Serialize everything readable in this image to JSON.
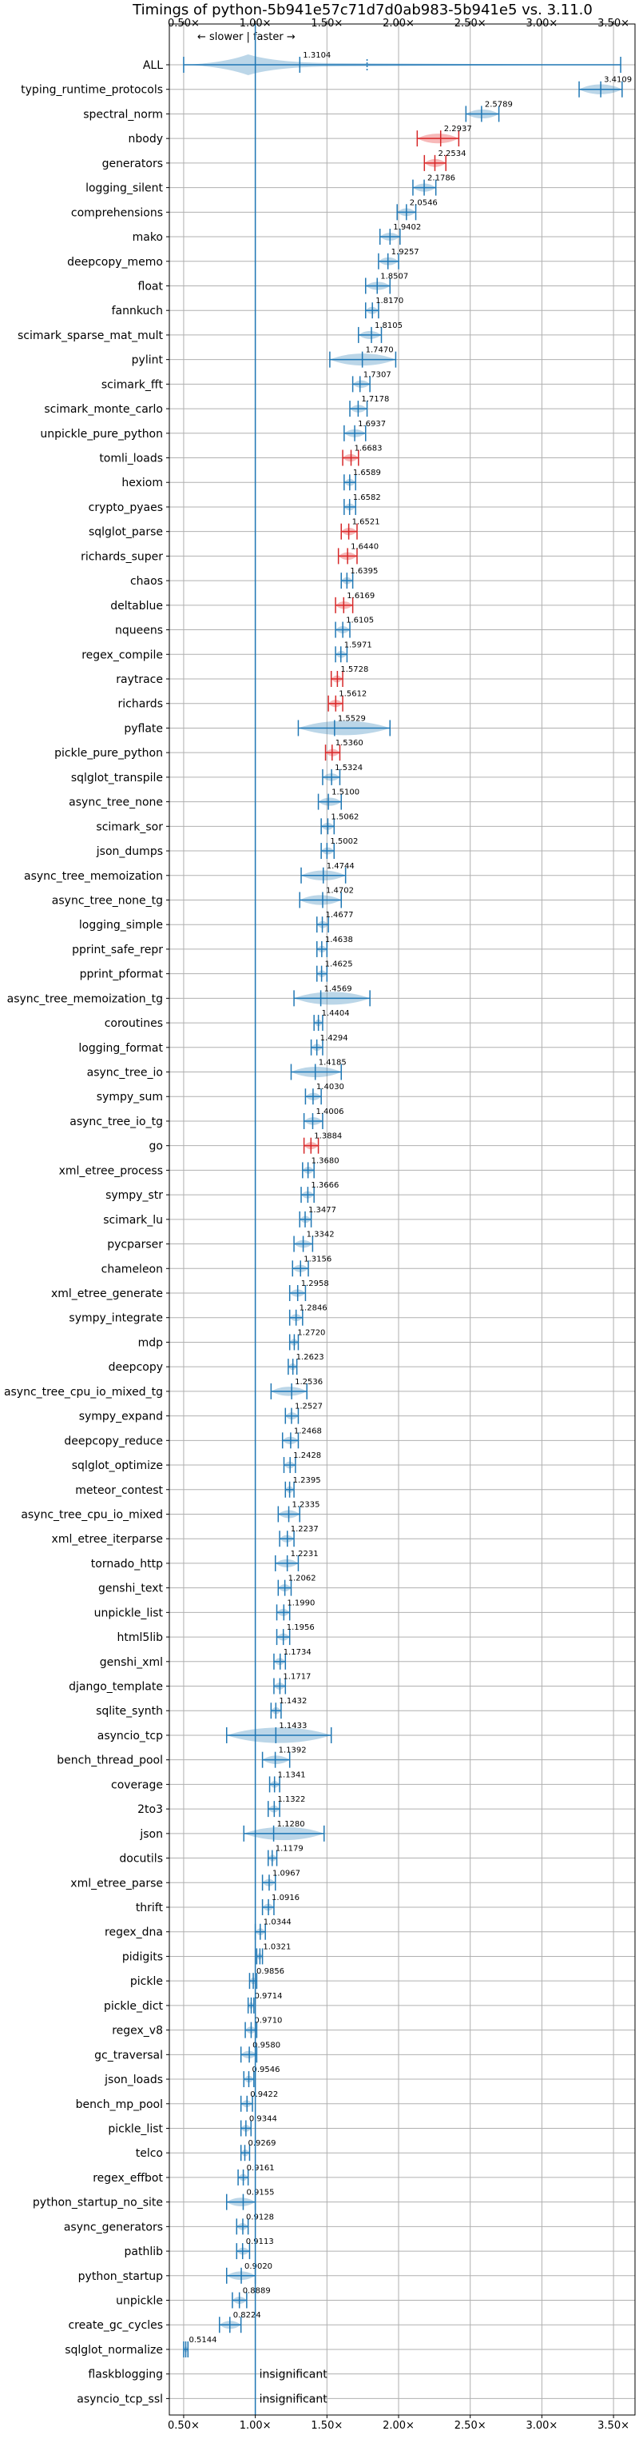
{
  "chart_data": {
    "type": "violin",
    "title": "Timings of python-5b941e57c71d7d0ab983-5b941e5 vs. 3.11.0",
    "direction_note": "← slower | faster →",
    "xlim": [
      0.4,
      3.65
    ],
    "x_ticks": [
      0.5,
      1.0,
      1.5,
      2.0,
      2.5,
      3.0,
      3.5
    ],
    "x_tick_labels": [
      "0.50×",
      "1.00×",
      "1.50×",
      "2.00×",
      "2.50×",
      "3.00×",
      "3.50×"
    ],
    "reference_line": 1.0,
    "grid": true,
    "benchmarks": [
      {
        "name": "ALL",
        "value": 1.3104,
        "label": "1.3104",
        "min": 0.5,
        "max": 3.55,
        "spread": 0.12
      },
      {
        "name": "typing_runtime_protocols",
        "value": 3.4109,
        "label": "3.4109",
        "min": 3.26,
        "max": 3.56,
        "spread": 0.06
      },
      {
        "name": "spectral_norm",
        "value": 2.5789,
        "label": "2.5789",
        "min": 2.47,
        "max": 2.7,
        "spread": 0.06
      },
      {
        "name": "nbody",
        "value": 2.2937,
        "label": "2.2937",
        "min": 2.13,
        "max": 2.42,
        "spread": 0.05,
        "color": "red"
      },
      {
        "name": "generators",
        "value": 2.2534,
        "label": "2.2534",
        "min": 2.18,
        "max": 2.33,
        "spread": 0.05,
        "color": "red"
      },
      {
        "name": "logging_silent",
        "value": 2.1786,
        "label": "2.1786",
        "min": 2.1,
        "max": 2.26,
        "spread": 0.05
      },
      {
        "name": "comprehensions",
        "value": 2.0546,
        "label": "2.0546",
        "min": 1.99,
        "max": 2.12,
        "spread": 0.05
      },
      {
        "name": "mako",
        "value": 1.9402,
        "label": "1.9402",
        "min": 1.87,
        "max": 2.01,
        "spread": 0.05
      },
      {
        "name": "deepcopy_memo",
        "value": 1.9257,
        "label": "1.9257",
        "min": 1.86,
        "max": 2.0,
        "spread": 0.05
      },
      {
        "name": "float",
        "value": 1.8507,
        "label": "1.8507",
        "min": 1.77,
        "max": 1.94,
        "spread": 0.05
      },
      {
        "name": "fannkuch",
        "value": 1.817,
        "label": "1.8170",
        "min": 1.77,
        "max": 1.86,
        "spread": 0.05
      },
      {
        "name": "scimark_sparse_mat_mult",
        "value": 1.8105,
        "label": "1.8105",
        "min": 1.72,
        "max": 1.88,
        "spread": 0.05
      },
      {
        "name": "pylint",
        "value": 1.747,
        "label": "1.7470",
        "min": 1.52,
        "max": 1.98,
        "spread": 0.05
      },
      {
        "name": "scimark_fft",
        "value": 1.7307,
        "label": "1.7307",
        "min": 1.68,
        "max": 1.8,
        "spread": 0.05
      },
      {
        "name": "scimark_monte_carlo",
        "value": 1.7178,
        "label": "1.7178",
        "min": 1.66,
        "max": 1.78,
        "spread": 0.05
      },
      {
        "name": "unpickle_pure_python",
        "value": 1.6937,
        "label": "1.6937",
        "min": 1.62,
        "max": 1.77,
        "spread": 0.05
      },
      {
        "name": "tomli_loads",
        "value": 1.6683,
        "label": "1.6683",
        "min": 1.61,
        "max": 1.72,
        "spread": 0.05,
        "color": "red"
      },
      {
        "name": "hexiom",
        "value": 1.6589,
        "label": "1.6589",
        "min": 1.62,
        "max": 1.7,
        "spread": 0.05
      },
      {
        "name": "crypto_pyaes",
        "value": 1.6582,
        "label": "1.6582",
        "min": 1.62,
        "max": 1.7,
        "spread": 0.05
      },
      {
        "name": "sqlglot_parse",
        "value": 1.6521,
        "label": "1.6521",
        "min": 1.6,
        "max": 1.71,
        "spread": 0.05,
        "color": "red"
      },
      {
        "name": "richards_super",
        "value": 1.644,
        "label": "1.6440",
        "min": 1.58,
        "max": 1.71,
        "spread": 0.05,
        "color": "red"
      },
      {
        "name": "chaos",
        "value": 1.6395,
        "label": "1.6395",
        "min": 1.6,
        "max": 1.68,
        "spread": 0.05
      },
      {
        "name": "deltablue",
        "value": 1.6169,
        "label": "1.6169",
        "min": 1.56,
        "max": 1.68,
        "spread": 0.05,
        "color": "red"
      },
      {
        "name": "nqueens",
        "value": 1.6105,
        "label": "1.6105",
        "min": 1.56,
        "max": 1.66,
        "spread": 0.05
      },
      {
        "name": "regex_compile",
        "value": 1.5971,
        "label": "1.5971",
        "min": 1.56,
        "max": 1.64,
        "spread": 0.05
      },
      {
        "name": "raytrace",
        "value": 1.5728,
        "label": "1.5728",
        "min": 1.53,
        "max": 1.61,
        "spread": 0.05,
        "color": "red"
      },
      {
        "name": "richards",
        "value": 1.5612,
        "label": "1.5612",
        "min": 1.51,
        "max": 1.61,
        "spread": 0.05,
        "color": "red"
      },
      {
        "name": "pyflate",
        "value": 1.5529,
        "label": "1.5529",
        "min": 1.3,
        "max": 1.94,
        "spread": 0.05
      },
      {
        "name": "pickle_pure_python",
        "value": 1.536,
        "label": "1.5360",
        "min": 1.49,
        "max": 1.59,
        "spread": 0.05,
        "color": "red"
      },
      {
        "name": "sqlglot_transpile",
        "value": 1.5324,
        "label": "1.5324",
        "min": 1.47,
        "max": 1.59,
        "spread": 0.05
      },
      {
        "name": "async_tree_none",
        "value": 1.51,
        "label": "1.5100",
        "min": 1.44,
        "max": 1.6,
        "spread": 0.05
      },
      {
        "name": "scimark_sor",
        "value": 1.5062,
        "label": "1.5062",
        "min": 1.46,
        "max": 1.55,
        "spread": 0.05
      },
      {
        "name": "json_dumps",
        "value": 1.5002,
        "label": "1.5002",
        "min": 1.46,
        "max": 1.55,
        "spread": 0.05
      },
      {
        "name": "async_tree_memoization",
        "value": 1.4744,
        "label": "1.4744",
        "min": 1.32,
        "max": 1.63,
        "spread": 0.05
      },
      {
        "name": "async_tree_none_tg",
        "value": 1.4702,
        "label": "1.4702",
        "min": 1.31,
        "max": 1.6,
        "spread": 0.05
      },
      {
        "name": "logging_simple",
        "value": 1.4677,
        "label": "1.4677",
        "min": 1.43,
        "max": 1.51,
        "spread": 0.05
      },
      {
        "name": "pprint_safe_repr",
        "value": 1.4638,
        "label": "1.4638",
        "min": 1.43,
        "max": 1.5,
        "spread": 0.05
      },
      {
        "name": "pprint_pformat",
        "value": 1.4625,
        "label": "1.4625",
        "min": 1.43,
        "max": 1.5,
        "spread": 0.05
      },
      {
        "name": "async_tree_memoization_tg",
        "value": 1.4569,
        "label": "1.4569",
        "min": 1.27,
        "max": 1.8,
        "spread": 0.05
      },
      {
        "name": "coroutines",
        "value": 1.4404,
        "label": "1.4404",
        "min": 1.41,
        "max": 1.47,
        "spread": 0.05
      },
      {
        "name": "logging_format",
        "value": 1.4294,
        "label": "1.4294",
        "min": 1.39,
        "max": 1.47,
        "spread": 0.05
      },
      {
        "name": "async_tree_io",
        "value": 1.4185,
        "label": "1.4185",
        "min": 1.25,
        "max": 1.6,
        "spread": 0.05
      },
      {
        "name": "sympy_sum",
        "value": 1.403,
        "label": "1.4030",
        "min": 1.35,
        "max": 1.46,
        "spread": 0.05
      },
      {
        "name": "async_tree_io_tg",
        "value": 1.4006,
        "label": "1.4006",
        "min": 1.34,
        "max": 1.47,
        "spread": 0.05
      },
      {
        "name": "go",
        "value": 1.3884,
        "label": "1.3884",
        "min": 1.34,
        "max": 1.44,
        "spread": 0.05,
        "color": "red"
      },
      {
        "name": "xml_etree_process",
        "value": 1.368,
        "label": "1.3680",
        "min": 1.33,
        "max": 1.41,
        "spread": 0.05
      },
      {
        "name": "sympy_str",
        "value": 1.3666,
        "label": "1.3666",
        "min": 1.32,
        "max": 1.41,
        "spread": 0.05
      },
      {
        "name": "scimark_lu",
        "value": 1.3477,
        "label": "1.3477",
        "min": 1.31,
        "max": 1.39,
        "spread": 0.05
      },
      {
        "name": "pycparser",
        "value": 1.3342,
        "label": "1.3342",
        "min": 1.27,
        "max": 1.4,
        "spread": 0.05
      },
      {
        "name": "chameleon",
        "value": 1.3156,
        "label": "1.3156",
        "min": 1.26,
        "max": 1.37,
        "spread": 0.05
      },
      {
        "name": "xml_etree_generate",
        "value": 1.2958,
        "label": "1.2958",
        "min": 1.24,
        "max": 1.35,
        "spread": 0.05
      },
      {
        "name": "sympy_integrate",
        "value": 1.2846,
        "label": "1.2846",
        "min": 1.24,
        "max": 1.33,
        "spread": 0.05
      },
      {
        "name": "mdp",
        "value": 1.272,
        "label": "1.2720",
        "min": 1.24,
        "max": 1.3,
        "spread": 0.05
      },
      {
        "name": "deepcopy",
        "value": 1.2623,
        "label": "1.2623",
        "min": 1.23,
        "max": 1.29,
        "spread": 0.05
      },
      {
        "name": "async_tree_cpu_io_mixed_tg",
        "value": 1.2536,
        "label": "1.2536",
        "min": 1.11,
        "max": 1.36,
        "spread": 0.05
      },
      {
        "name": "sympy_expand",
        "value": 1.2527,
        "label": "1.2527",
        "min": 1.21,
        "max": 1.3,
        "spread": 0.05
      },
      {
        "name": "deepcopy_reduce",
        "value": 1.2468,
        "label": "1.2468",
        "min": 1.19,
        "max": 1.3,
        "spread": 0.05
      },
      {
        "name": "sqlglot_optimize",
        "value": 1.2428,
        "label": "1.2428",
        "min": 1.2,
        "max": 1.28,
        "spread": 0.05
      },
      {
        "name": "meteor_contest",
        "value": 1.2395,
        "label": "1.2395",
        "min": 1.21,
        "max": 1.27,
        "spread": 0.05
      },
      {
        "name": "async_tree_cpu_io_mixed",
        "value": 1.2335,
        "label": "1.2335",
        "min": 1.16,
        "max": 1.31,
        "spread": 0.05
      },
      {
        "name": "xml_etree_iterparse",
        "value": 1.2237,
        "label": "1.2237",
        "min": 1.17,
        "max": 1.27,
        "spread": 0.05
      },
      {
        "name": "tornado_http",
        "value": 1.2231,
        "label": "1.2231",
        "min": 1.14,
        "max": 1.3,
        "spread": 0.05
      },
      {
        "name": "genshi_text",
        "value": 1.2062,
        "label": "1.2062",
        "min": 1.16,
        "max": 1.25,
        "spread": 0.05
      },
      {
        "name": "unpickle_list",
        "value": 1.199,
        "label": "1.1990",
        "min": 1.15,
        "max": 1.24,
        "spread": 0.05
      },
      {
        "name": "html5lib",
        "value": 1.1956,
        "label": "1.1956",
        "min": 1.15,
        "max": 1.24,
        "spread": 0.05
      },
      {
        "name": "genshi_xml",
        "value": 1.1734,
        "label": "1.1734",
        "min": 1.13,
        "max": 1.21,
        "spread": 0.05
      },
      {
        "name": "django_template",
        "value": 1.1717,
        "label": "1.1717",
        "min": 1.13,
        "max": 1.21,
        "spread": 0.05
      },
      {
        "name": "sqlite_synth",
        "value": 1.1432,
        "label": "1.1432",
        "min": 1.11,
        "max": 1.18,
        "spread": 0.05
      },
      {
        "name": "asyncio_tcp",
        "value": 1.1433,
        "label": "1.1433",
        "min": 0.8,
        "max": 1.53,
        "spread": 0.05
      },
      {
        "name": "bench_thread_pool",
        "value": 1.1392,
        "label": "1.1392",
        "min": 1.05,
        "max": 1.24,
        "spread": 0.05
      },
      {
        "name": "coverage",
        "value": 1.1341,
        "label": "1.1341",
        "min": 1.1,
        "max": 1.17,
        "spread": 0.05
      },
      {
        "name": "2to3",
        "value": 1.1322,
        "label": "1.1322",
        "min": 1.09,
        "max": 1.17,
        "spread": 0.05
      },
      {
        "name": "json",
        "value": 1.128,
        "label": "1.1280",
        "min": 0.92,
        "max": 1.48,
        "spread": 0.05
      },
      {
        "name": "docutils",
        "value": 1.1179,
        "label": "1.1179",
        "min": 1.09,
        "max": 1.15,
        "spread": 0.05
      },
      {
        "name": "xml_etree_parse",
        "value": 1.0967,
        "label": "1.0967",
        "min": 1.05,
        "max": 1.14,
        "spread": 0.05
      },
      {
        "name": "thrift",
        "value": 1.0916,
        "label": "1.0916",
        "min": 1.05,
        "max": 1.13,
        "spread": 0.05
      },
      {
        "name": "regex_dna",
        "value": 1.0344,
        "label": "1.0344",
        "min": 1.0,
        "max": 1.07,
        "spread": 0.05
      },
      {
        "name": "pidigits",
        "value": 1.0321,
        "label": "1.0321",
        "min": 1.01,
        "max": 1.05,
        "spread": 0.05
      },
      {
        "name": "pickle",
        "value": 0.9856,
        "label": "0.9856",
        "min": 0.96,
        "max": 1.01,
        "spread": 0.05
      },
      {
        "name": "pickle_dict",
        "value": 0.9714,
        "label": "0.9714",
        "min": 0.95,
        "max": 0.99,
        "spread": 0.05
      },
      {
        "name": "regex_v8",
        "value": 0.971,
        "label": "0.9710",
        "min": 0.93,
        "max": 1.01,
        "spread": 0.05
      },
      {
        "name": "gc_traversal",
        "value": 0.958,
        "label": "0.9580",
        "min": 0.9,
        "max": 1.01,
        "spread": 0.05
      },
      {
        "name": "json_loads",
        "value": 0.9546,
        "label": "0.9546",
        "min": 0.92,
        "max": 0.99,
        "spread": 0.05
      },
      {
        "name": "bench_mp_pool",
        "value": 0.9422,
        "label": "0.9422",
        "min": 0.9,
        "max": 0.98,
        "spread": 0.05
      },
      {
        "name": "pickle_list",
        "value": 0.9344,
        "label": "0.9344",
        "min": 0.9,
        "max": 0.97,
        "spread": 0.05
      },
      {
        "name": "telco",
        "value": 0.9269,
        "label": "0.9269",
        "min": 0.9,
        "max": 0.96,
        "spread": 0.05
      },
      {
        "name": "regex_effbot",
        "value": 0.9161,
        "label": "0.9161",
        "min": 0.88,
        "max": 0.95,
        "spread": 0.05
      },
      {
        "name": "python_startup_no_site",
        "value": 0.9155,
        "label": "0.9155",
        "min": 0.8,
        "max": 1.0,
        "spread": 0.05
      },
      {
        "name": "async_generators",
        "value": 0.9128,
        "label": "0.9128",
        "min": 0.87,
        "max": 0.95,
        "spread": 0.05
      },
      {
        "name": "pathlib",
        "value": 0.9113,
        "label": "0.9113",
        "min": 0.87,
        "max": 0.96,
        "spread": 0.05
      },
      {
        "name": "python_startup",
        "value": 0.902,
        "label": "0.9020",
        "min": 0.8,
        "max": 1.0,
        "spread": 0.05
      },
      {
        "name": "unpickle",
        "value": 0.8889,
        "label": "0.8889",
        "min": 0.84,
        "max": 0.94,
        "spread": 0.05
      },
      {
        "name": "create_gc_cycles",
        "value": 0.8224,
        "label": "0.8224",
        "min": 0.75,
        "max": 0.9,
        "spread": 0.05
      },
      {
        "name": "sqlglot_normalize",
        "value": 0.5144,
        "label": "0.5144",
        "min": 0.5,
        "max": 0.53,
        "spread": 0.05
      },
      {
        "name": "flaskblogging",
        "insignificant": true,
        "label": "insignificant"
      },
      {
        "name": "asyncio_tcp_ssl",
        "insignificant": true,
        "label": "insignificant"
      }
    ]
  }
}
